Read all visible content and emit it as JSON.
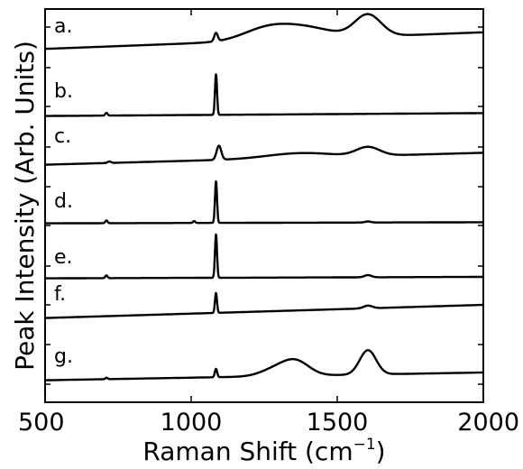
{
  "chart_data": {
    "type": "line",
    "xlabel": "Raman Shift (cm",
    "xlabel_sup": "−1",
    "xlabel_tail": ")",
    "ylabel": "Peak Intensity (Arb. Units)",
    "xlim": [
      500,
      2000
    ],
    "xticks": [
      500,
      1000,
      1500,
      2000
    ],
    "ytick_labels": "none",
    "grid": false,
    "legend": "none",
    "line_color": "#000000",
    "series": [
      {
        "name": "a.",
        "baseline": [
          0.4,
          9.6
        ],
        "peaks": [
          {
            "x": 1085,
            "h": 4.6,
            "w": 6
          },
          {
            "x": 1250,
            "h": 5.2,
            "w": 80
          },
          {
            "x": 1380,
            "h": 6.4,
            "w": 100
          },
          {
            "x": 1605,
            "h": 12.0,
            "w": 45
          }
        ]
      },
      {
        "name": "b.",
        "baseline": [
          0.2,
          1.8
        ],
        "peaks": [
          {
            "x": 710,
            "h": 1.5,
            "w": 4
          },
          {
            "x": 1085,
            "h": 22.5,
            "w": 3.5
          }
        ]
      },
      {
        "name": "c.",
        "baseline": [
          0.2,
          6.8
        ],
        "peaks": [
          {
            "x": 720,
            "h": 0.8,
            "w": 6
          },
          {
            "x": 1095,
            "h": 7.8,
            "w": 8
          },
          {
            "x": 1370,
            "h": 2.6,
            "w": 110
          },
          {
            "x": 1605,
            "h": 4.8,
            "w": 40
          }
        ]
      },
      {
        "name": "d.",
        "baseline": [
          0.2,
          0.8
        ],
        "peaks": [
          {
            "x": 710,
            "h": 1.5,
            "w": 4
          },
          {
            "x": 1010,
            "h": 1.0,
            "w": 4
          },
          {
            "x": 1085,
            "h": 23.0,
            "w": 3.5
          },
          {
            "x": 1605,
            "h": 0.6,
            "w": 10
          }
        ]
      },
      {
        "name": "e.",
        "baseline": [
          0.2,
          1.0
        ],
        "peaks": [
          {
            "x": 710,
            "h": 1.5,
            "w": 4
          },
          {
            "x": 1085,
            "h": 24.0,
            "w": 3.5
          },
          {
            "x": 1605,
            "h": 1.2,
            "w": 12
          }
        ]
      },
      {
        "name": "f.",
        "baseline": [
          0.2,
          7.5
        ],
        "peaks": [
          {
            "x": 1085,
            "h": 11.0,
            "w": 3.5
          },
          {
            "x": 1605,
            "h": 1.5,
            "w": 15
          }
        ]
      },
      {
        "name": "g.",
        "baseline": [
          0.2,
          4.5
        ],
        "peaks": [
          {
            "x": 710,
            "h": 0.8,
            "w": 4
          },
          {
            "x": 1085,
            "h": 4.6,
            "w": 4
          },
          {
            "x": 1290,
            "h": 4.0,
            "w": 50
          },
          {
            "x": 1360,
            "h": 7.5,
            "w": 45
          },
          {
            "x": 1605,
            "h": 13.5,
            "w": 28
          }
        ]
      }
    ]
  }
}
